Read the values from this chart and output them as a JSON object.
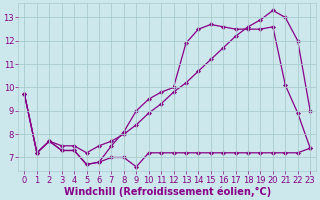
{
  "background_color": "#cce8ec",
  "grid_color": "#aacccc",
  "line_color": "#880088",
  "x_label": "Windchill (Refroidissement éolien,°C)",
  "xlim": [
    -0.5,
    23.5
  ],
  "ylim": [
    6.4,
    13.6
  ],
  "yticks": [
    7,
    8,
    9,
    10,
    11,
    12,
    13
  ],
  "xticks": [
    0,
    1,
    2,
    3,
    4,
    5,
    6,
    7,
    8,
    9,
    10,
    11,
    12,
    13,
    14,
    15,
    16,
    17,
    18,
    19,
    20,
    21,
    22,
    23
  ],
  "tick_fontsize": 6.0,
  "xlabel_fontsize": 7.0,
  "line1_x": [
    0,
    1,
    2,
    3,
    4,
    5,
    6,
    7,
    8,
    9,
    10,
    11,
    12,
    13,
    14,
    15,
    16,
    17,
    18,
    19,
    20,
    21,
    22,
    23
  ],
  "line1_y": [
    9.7,
    7.2,
    7.7,
    7.5,
    7.5,
    7.2,
    7.5,
    7.7,
    8.0,
    8.4,
    8.9,
    9.3,
    9.8,
    10.2,
    10.7,
    11.2,
    11.7,
    12.2,
    12.6,
    12.9,
    13.3,
    13.0,
    12.0,
    9.0
  ],
  "line2_x": [
    0,
    1,
    2,
    3,
    4,
    5,
    6,
    7,
    8,
    9,
    10,
    11,
    12,
    13,
    14,
    15,
    16,
    17,
    18,
    19,
    20,
    21,
    22,
    23
  ],
  "line2_y": [
    9.7,
    7.2,
    7.7,
    7.3,
    7.3,
    6.7,
    6.8,
    7.5,
    8.1,
    9.0,
    9.5,
    9.8,
    10.0,
    11.9,
    12.5,
    12.7,
    12.6,
    12.5,
    12.5,
    12.5,
    12.6,
    10.1,
    8.9,
    7.4
  ],
  "line3_x": [
    0,
    1,
    2,
    3,
    4,
    5,
    6,
    7,
    8,
    9,
    10,
    11,
    12,
    13,
    14,
    15,
    16,
    17,
    18,
    19,
    20,
    21,
    22,
    23
  ],
  "line3_y": [
    9.7,
    7.2,
    7.7,
    7.3,
    7.3,
    6.7,
    6.8,
    7.0,
    7.0,
    6.6,
    7.2,
    7.2,
    7.2,
    7.2,
    7.2,
    7.2,
    7.2,
    7.2,
    7.2,
    7.2,
    7.2,
    7.2,
    7.2,
    7.4
  ]
}
